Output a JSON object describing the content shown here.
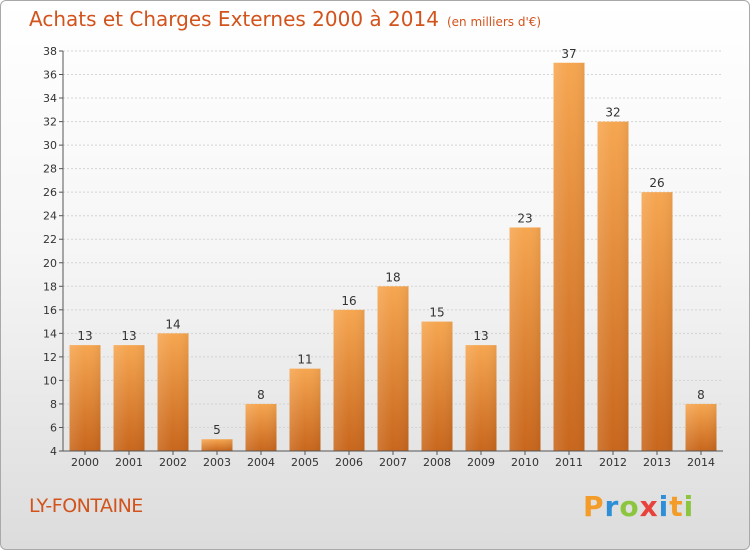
{
  "header": {
    "title": "Achats et Charges Externes 2000 à 2014",
    "subtitle": "(en milliers d'€)"
  },
  "footer": {
    "town": "LY-FONTAINE",
    "brand_letters": [
      {
        "ch": "P",
        "color": "#f39c2a"
      },
      {
        "ch": "r",
        "color": "#2f8fd6"
      },
      {
        "ch": "o",
        "color": "#8cc63f"
      },
      {
        "ch": "x",
        "color": "#e8423c"
      },
      {
        "ch": "i",
        "color": "#2f8fd6"
      },
      {
        "ch": "t",
        "color": "#f39c2a"
      },
      {
        "ch": "i",
        "color": "#8cc63f"
      }
    ]
  },
  "colors": {
    "title": "#d2531c",
    "bar_light": "#f6a650",
    "bar_dark": "#c8661c"
  },
  "chart_data": {
    "type": "bar",
    "categories": [
      "2000",
      "2001",
      "2002",
      "2003",
      "2004",
      "2005",
      "2006",
      "2007",
      "2008",
      "2009",
      "2010",
      "2011",
      "2012",
      "2013",
      "2014"
    ],
    "values": [
      13,
      13,
      14,
      5,
      8,
      11,
      16,
      18,
      15,
      13,
      23,
      37,
      32,
      26,
      8
    ],
    "ylim": [
      4,
      38
    ],
    "yticks": [
      4,
      6,
      8,
      10,
      12,
      14,
      16,
      18,
      20,
      22,
      24,
      26,
      28,
      30,
      32,
      34,
      36,
      38
    ],
    "grid": true,
    "title": "Achats et Charges Externes 2000 à 2014",
    "xlabel": "",
    "ylabel": ""
  }
}
